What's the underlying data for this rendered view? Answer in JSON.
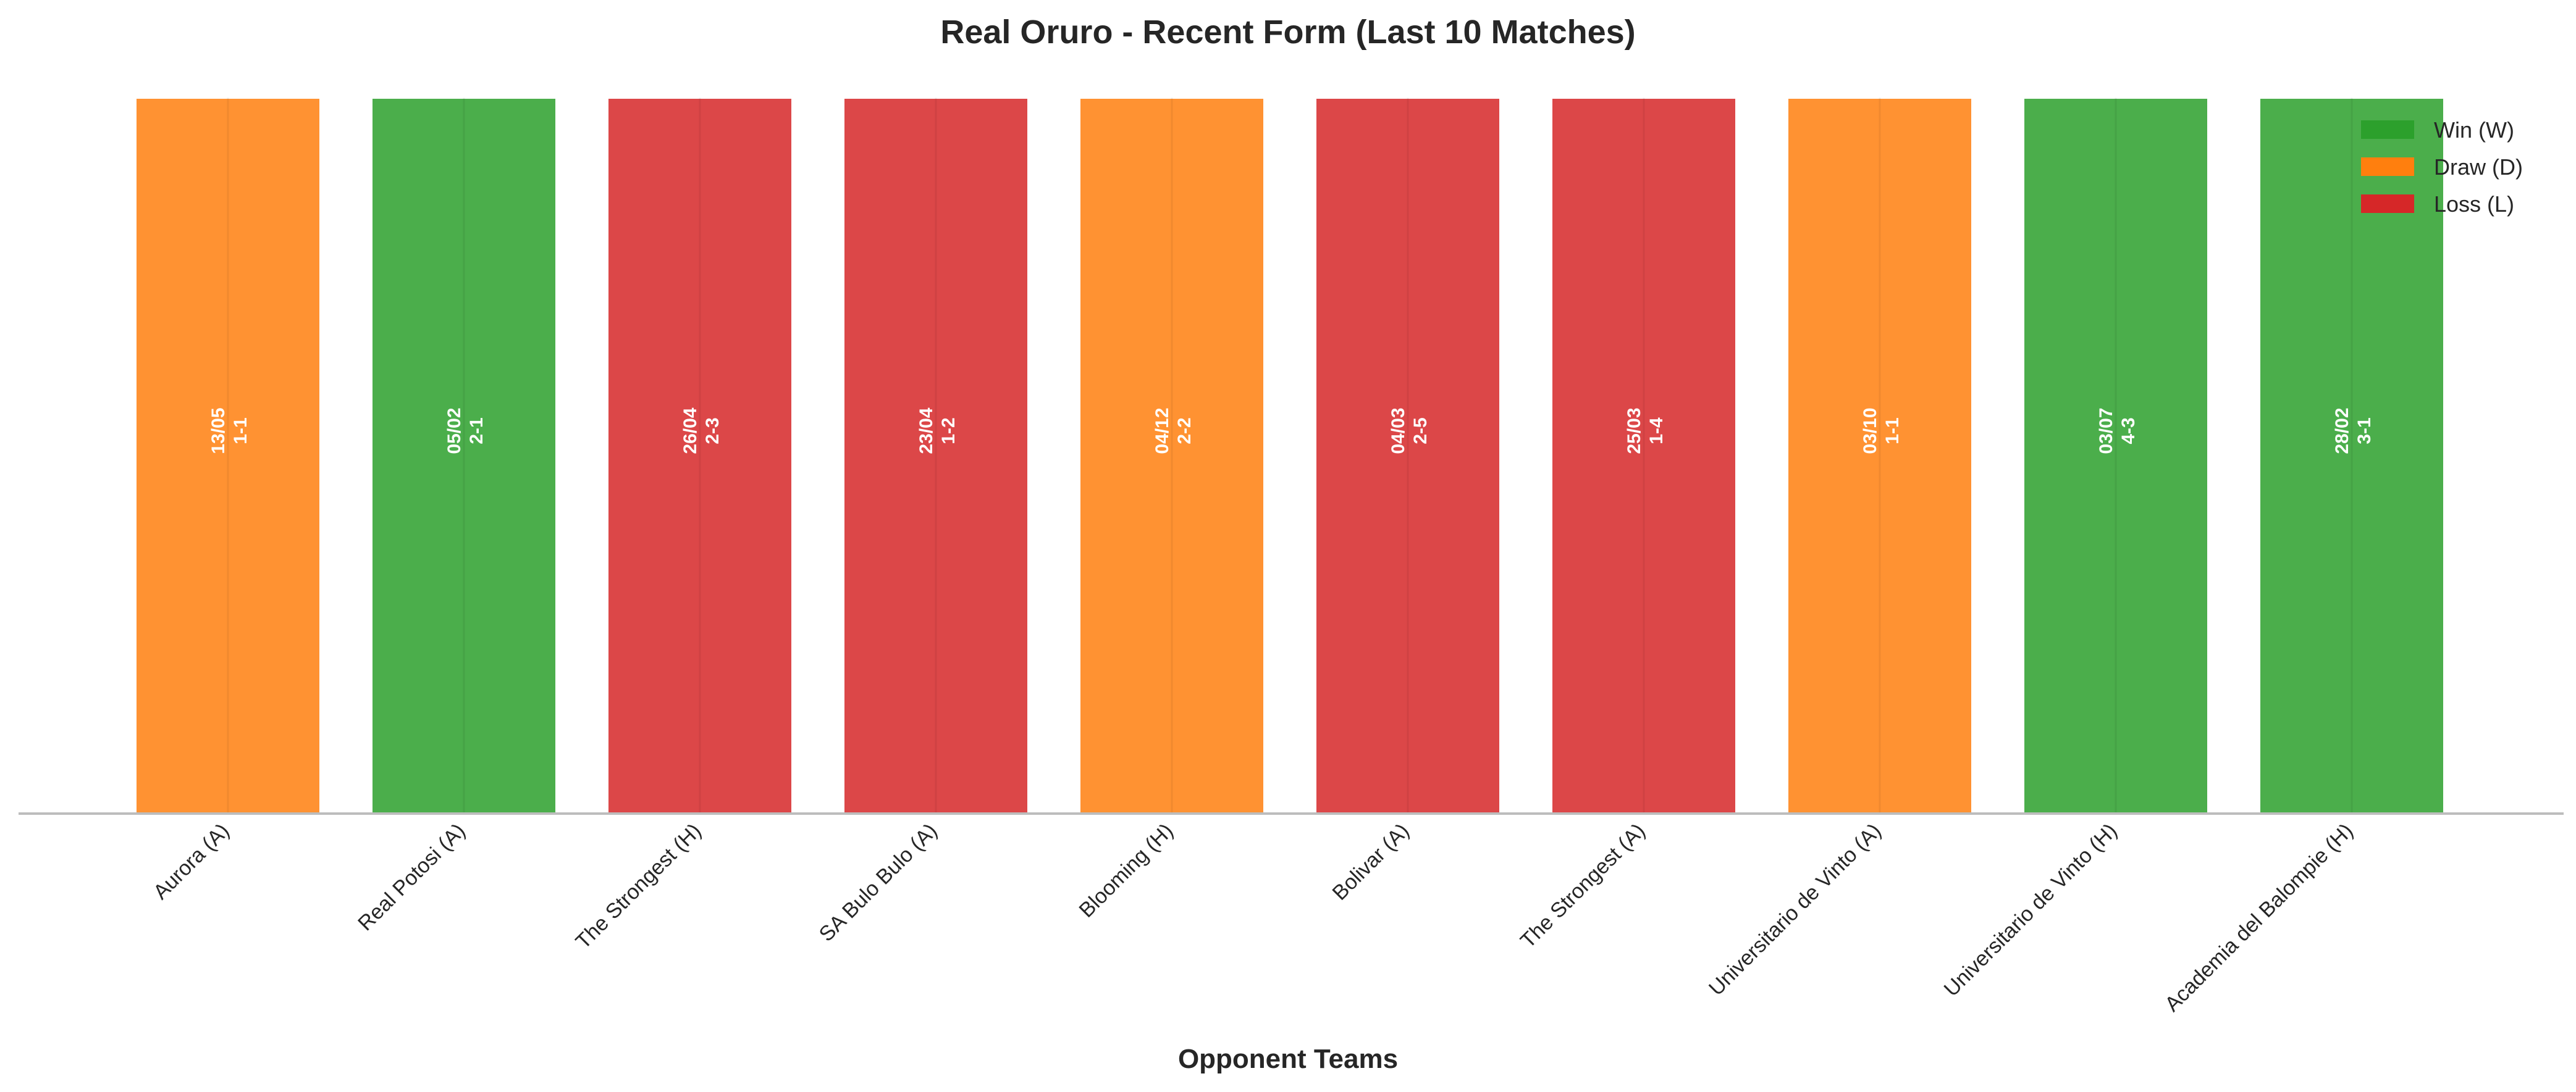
{
  "chart_data": {
    "type": "bar",
    "title": "Real Oruro - Recent Form (Last 10 Matches)",
    "xlabel": "Opponent Teams",
    "ylabel": "",
    "ylim": [
      0,
      1
    ],
    "grid": false,
    "legend_position": "top-right",
    "categories": [
      "Aurora (A)",
      "Real Potosi (A)",
      "The Strongest (H)",
      "SA Bulo Bulo (A)",
      "Blooming (H)",
      "Bolivar (A)",
      "The Strongest (A)",
      "Universitario de Vinto (A)",
      "Universitario de Vinto (H)",
      "Academia del Balompie (H)"
    ],
    "values": [
      1,
      1,
      1,
      1,
      1,
      1,
      1,
      1,
      1,
      1
    ],
    "results": [
      "D",
      "W",
      "L",
      "L",
      "D",
      "L",
      "L",
      "D",
      "W",
      "W"
    ],
    "dates": [
      "13/05",
      "05/02",
      "26/04",
      "23/04",
      "04/12",
      "04/03",
      "25/03",
      "03/10",
      "03/07",
      "28/02"
    ],
    "scores": [
      "1-1",
      "2-1",
      "2-3",
      "1-2",
      "2-2",
      "2-5",
      "1-4",
      "1-1",
      "4-3",
      "3-1"
    ],
    "legend": [
      {
        "key": "W",
        "label": "Win (W)",
        "color": "#2ca02c"
      },
      {
        "key": "D",
        "label": "Draw (D)",
        "color": "#ff7f0e"
      },
      {
        "key": "L",
        "label": "Loss (L)",
        "color": "#d62728"
      }
    ]
  }
}
